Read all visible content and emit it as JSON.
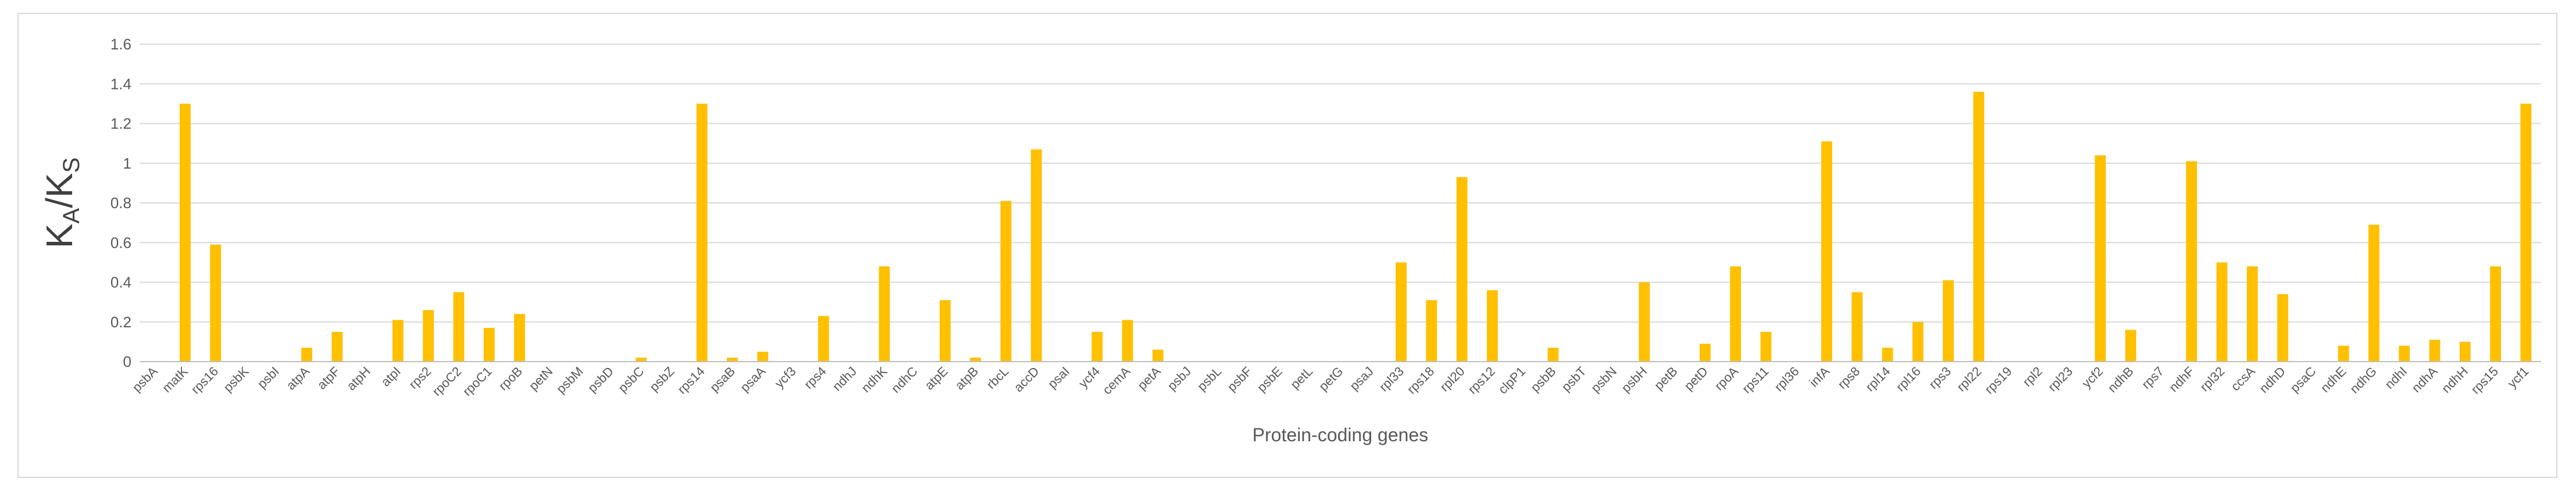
{
  "chart_data": {
    "type": "bar",
    "title": "",
    "xlabel": "Protein-coding genes",
    "ylabel": {
      "main_a": "K",
      "sub_a": "A",
      "slash": "/",
      "main_b": "K",
      "sub_b": "S"
    },
    "ylim": [
      0,
      1.6
    ],
    "yticks": [
      "0",
      "0.2",
      "0.4",
      "0.6",
      "0.8",
      "1",
      "1.2",
      "1.4",
      "1.6"
    ],
    "grid": true,
    "legend": "none",
    "bar_color": "#FFC000",
    "grid_color": "#D9D9D9",
    "categories": [
      "psbA",
      "matK",
      "rps16",
      "psbK",
      "psbI",
      "atpA",
      "atpF",
      "atpH",
      "atpI",
      "rps2",
      "rpoC2",
      "rpoC1",
      "rpoB",
      "petN",
      "psbM",
      "psbD",
      "psbC",
      "psbZ",
      "rps14",
      "psaB",
      "psaA",
      "ycf3",
      "rps4",
      "ndhJ",
      "ndhK",
      "ndhC",
      "atpE",
      "atpB",
      "rbcL",
      "accD",
      "psaI",
      "ycf4",
      "cemA",
      "petA",
      "psbJ",
      "psbL",
      "psbF",
      "psbE",
      "petL",
      "petG",
      "psaJ",
      "rpl33",
      "rps18",
      "rpl20",
      "rps12",
      "clpP1",
      "psbB",
      "psbT",
      "psbN",
      "psbH",
      "petB",
      "petD",
      "rpoA",
      "rps11",
      "rpl36",
      "infA",
      "rps8",
      "rpl14",
      "rpl16",
      "rps3",
      "rpl22",
      "rps19",
      "rpl2",
      "rpl23",
      "ycf2",
      "ndhB",
      "rps7",
      "ndhF",
      "rpl32",
      "ccsA",
      "ndhD",
      "psaC",
      "ndhE",
      "ndhG",
      "ndhI",
      "ndhA",
      "ndhH",
      "rps15",
      "ycf1"
    ],
    "values": [
      0,
      1.3,
      0.59,
      0,
      0,
      0.07,
      0.15,
      0,
      0.21,
      0.26,
      0.35,
      0.17,
      0.24,
      0,
      0,
      0,
      0.02,
      0,
      1.3,
      0.02,
      0.05,
      0,
      0.23,
      0,
      0.48,
      0,
      0.31,
      0.02,
      0.81,
      1.07,
      0,
      0.15,
      0.21,
      0.06,
      0,
      0,
      0,
      0,
      0,
      0,
      0,
      0.5,
      0.31,
      0.93,
      0.36,
      0,
      0.07,
      0,
      0,
      0.4,
      0,
      0.09,
      0.48,
      0.15,
      0,
      1.11,
      0.35,
      0.07,
      0.2,
      0.41,
      1.36,
      0,
      0,
      0,
      1.04,
      0.16,
      0,
      1.01,
      0.5,
      0.48,
      0.34,
      0,
      0.08,
      0.69,
      0.08,
      0.11,
      0.1,
      0.48,
      1.3
    ]
  }
}
